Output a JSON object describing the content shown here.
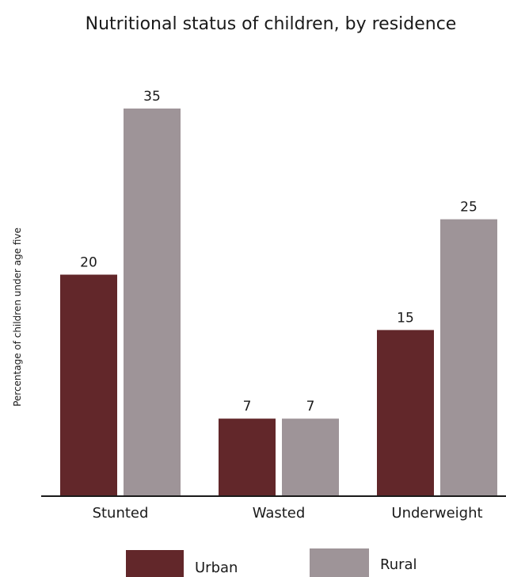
{
  "chart_data": {
    "type": "bar",
    "title": "Nutritional status of children, by residence",
    "xlabel": "",
    "ylabel": "Percentage of children under age five",
    "categories": [
      "Stunted",
      "Wasted",
      "Underweight"
    ],
    "series": [
      {
        "name": "Urban",
        "values": [
          20,
          7,
          15
        ],
        "color": "#62272a"
      },
      {
        "name": "Rural",
        "values": [
          35,
          7,
          25
        ],
        "color": "#9e9498"
      }
    ],
    "ylim": [
      0,
      38.5
    ],
    "grid": false,
    "legend_position": "bottom"
  }
}
